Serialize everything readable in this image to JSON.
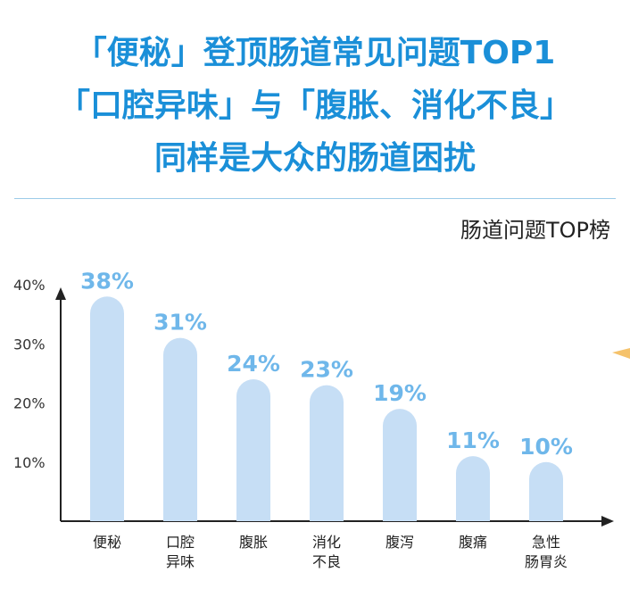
{
  "headline": {
    "line1": "「便秘」登顶肠道常见问题TOP1",
    "line2": "「口腔异味」与「腹胀、消化不良」",
    "line3": "同样是大众的肠道困扰"
  },
  "chart_data": {
    "type": "bar",
    "title": "肠道问题TOP榜",
    "categories": [
      [
        "便秘"
      ],
      [
        "口腔",
        "异味"
      ],
      [
        "腹胀"
      ],
      [
        "消化",
        "不良"
      ],
      [
        "腹泻"
      ],
      [
        "腹痛"
      ],
      [
        "急性",
        "肠胃炎"
      ]
    ],
    "values": [
      38,
      31,
      24,
      23,
      19,
      11,
      10
    ],
    "value_labels": [
      "38%",
      "31%",
      "24%",
      "23%",
      "19%",
      "11%",
      "10%"
    ],
    "y_ticks": [
      10,
      20,
      30,
      40
    ],
    "y_tick_labels": [
      "10%",
      "20%",
      "30%",
      "40%"
    ],
    "ylim": [
      0,
      40
    ],
    "bar_color": "#c6def5",
    "label_color": "#6fb7ea",
    "axis_color": "#222222"
  }
}
